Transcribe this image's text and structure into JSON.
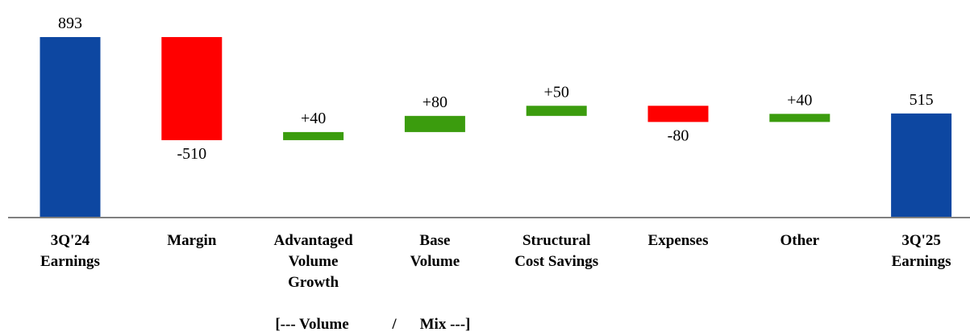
{
  "chart_data": {
    "type": "bar",
    "subtype": "waterfall",
    "categories": [
      [
        "3Q'24",
        "Earnings"
      ],
      [
        "Margin"
      ],
      [
        "Advantaged",
        "Volume",
        "Growth"
      ],
      [
        "Base",
        "Volume"
      ],
      [
        "Structural",
        "Cost Savings"
      ],
      [
        "Expenses"
      ],
      [
        "Other"
      ],
      [
        "3Q'25",
        "Earnings"
      ]
    ],
    "values": [
      893,
      -510,
      40,
      80,
      50,
      -80,
      40,
      515
    ],
    "value_labels": [
      "893",
      "-510",
      "+40",
      "+80",
      "+50",
      "-80",
      "+40",
      "515"
    ],
    "kinds": [
      "total",
      "delta",
      "delta",
      "delta",
      "delta",
      "delta",
      "delta",
      "total"
    ],
    "ylim": [
      0,
      893
    ],
    "grid": false,
    "colors": {
      "total": "#0D47A1",
      "increase": "#3B9C0E",
      "decrease": "#FF0000",
      "axis": "#808080"
    },
    "group_label": {
      "left": "[--- Volume",
      "sep": "/",
      "right": "Mix ---]"
    }
  }
}
